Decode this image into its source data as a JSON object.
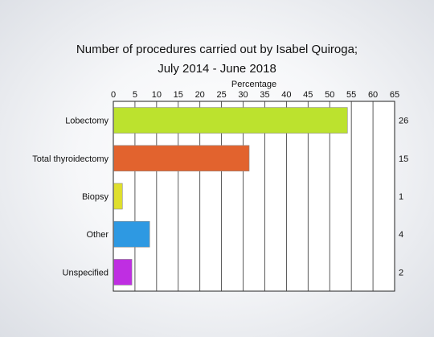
{
  "chart_data": {
    "type": "bar",
    "orientation": "horizontal",
    "title": [
      "Number of procedures carried out by Isabel Quiroga;",
      "July 2014 - June 2018"
    ],
    "xlabel": "Percentage",
    "xlim": [
      0,
      65
    ],
    "xticks": [
      0,
      5,
      10,
      15,
      20,
      25,
      30,
      35,
      40,
      45,
      50,
      55,
      60,
      65
    ],
    "grid": true,
    "categories": [
      "Lobectomy",
      "Total thyroidectomy",
      "Biopsy",
      "Other",
      "Unspecified"
    ],
    "values": [
      54,
      31.3,
      2,
      8.3,
      4.2
    ],
    "counts": [
      "26",
      "15",
      "1",
      "4",
      "2"
    ],
    "colors": [
      "#bce22e",
      "#e2632e",
      "#dfdf2e",
      "#2e99e2",
      "#bf2ee2"
    ]
  }
}
